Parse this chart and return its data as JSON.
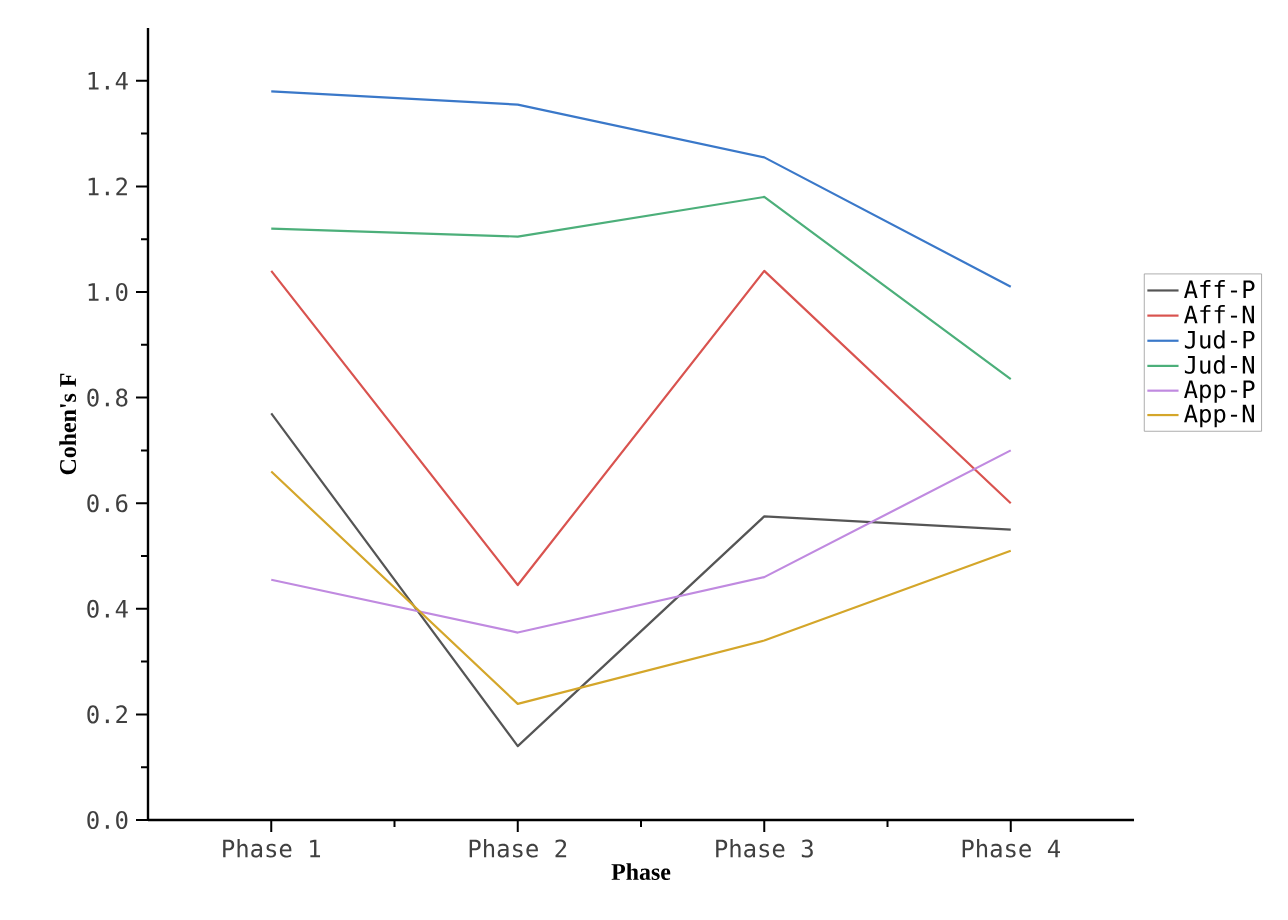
{
  "chart_data": {
    "type": "line",
    "xlabel": "Phase",
    "ylabel": "Cohen's F",
    "categories": [
      "Phase 1",
      "Phase 2",
      "Phase 3",
      "Phase 4"
    ],
    "series": [
      {
        "name": "Aff-P",
        "color": "#555555",
        "values": [
          0.77,
          0.14,
          0.575,
          0.55
        ]
      },
      {
        "name": "Aff-N",
        "color": "#d9534f",
        "values": [
          1.04,
          0.445,
          1.04,
          0.6
        ]
      },
      {
        "name": "Jud-P",
        "color": "#3a78c9",
        "values": [
          1.38,
          1.355,
          1.255,
          1.01
        ]
      },
      {
        "name": "Jud-N",
        "color": "#4caf7a",
        "values": [
          1.12,
          1.105,
          1.18,
          0.835
        ]
      },
      {
        "name": "App-P",
        "color": "#c08ae0",
        "values": [
          0.455,
          0.355,
          0.46,
          0.7
        ]
      },
      {
        "name": "App-N",
        "color": "#d4a62a",
        "values": [
          0.66,
          0.22,
          0.34,
          0.51
        ]
      }
    ],
    "ylim": [
      0,
      1.5
    ],
    "yticks": [
      {
        "value": 0,
        "label": "0.0"
      },
      {
        "value": 0.2,
        "label": "0.2"
      },
      {
        "value": 0.4,
        "label": "0.4"
      },
      {
        "value": 0.6,
        "label": "0.6"
      },
      {
        "value": 0.8,
        "label": "0.8"
      },
      {
        "value": 1.0,
        "label": "1.0"
      },
      {
        "value": 1.2,
        "label": "1.2"
      },
      {
        "value": 1.4,
        "label": "1.4"
      }
    ],
    "legend": "right",
    "grid": false,
    "marker": "none",
    "line_style": "solid"
  }
}
